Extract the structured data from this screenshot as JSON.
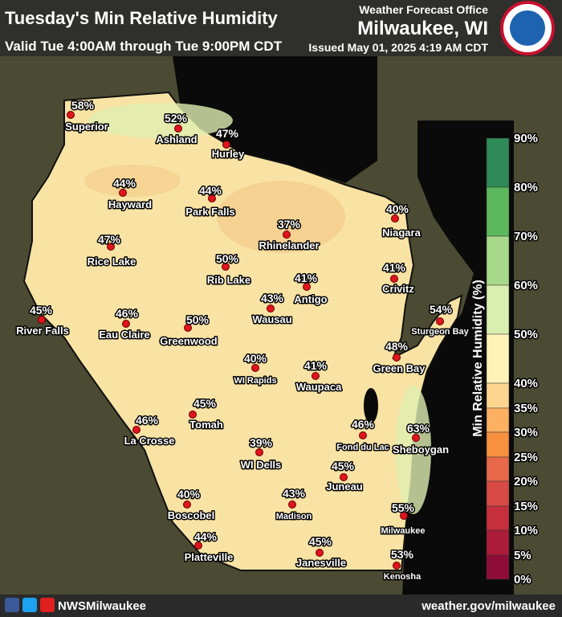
{
  "header": {
    "title": "Tuesday's Min Relative Humidity",
    "valid": "Valid Tue 4:00AM through Tue 9:00PM CDT",
    "office": "Weather Forecast Office",
    "location": "Milwaukee, WI",
    "issued": "Issued May 01, 2025 4:19 AM CDT"
  },
  "cities": [
    {
      "name": "Superior",
      "value": "58%"
    },
    {
      "name": "Ashland",
      "value": "52%"
    },
    {
      "name": "Hurley",
      "value": "47%"
    },
    {
      "name": "Hayward",
      "value": "44%"
    },
    {
      "name": "Park Falls",
      "value": "44%"
    },
    {
      "name": "Rhinelander",
      "value": "37%"
    },
    {
      "name": "Niagara",
      "value": "40%"
    },
    {
      "name": "Rice Lake",
      "value": "47%"
    },
    {
      "name": "Rib Lake",
      "value": "50%"
    },
    {
      "name": "Antigo",
      "value": "41%"
    },
    {
      "name": "Crivitz",
      "value": "41%"
    },
    {
      "name": "Sturgeon Bay",
      "value": "54%"
    },
    {
      "name": "River Falls",
      "value": "45%"
    },
    {
      "name": "Eau Claire",
      "value": "46%"
    },
    {
      "name": "Wausau",
      "value": "43%"
    },
    {
      "name": "Greenwood",
      "value": "50%"
    },
    {
      "name": "Green Bay",
      "value": "48%"
    },
    {
      "name": "WI Rapids",
      "value": "40%"
    },
    {
      "name": "Waupaca",
      "value": "41%"
    },
    {
      "name": "Tomah",
      "value": "45%"
    },
    {
      "name": "La Crosse",
      "value": "46%"
    },
    {
      "name": "Fond du Lac",
      "value": "46%"
    },
    {
      "name": "Sheboygan",
      "value": "63%"
    },
    {
      "name": "WI Dells",
      "value": "39%"
    },
    {
      "name": "Juneau",
      "value": "45%"
    },
    {
      "name": "Boscobel",
      "value": "40%"
    },
    {
      "name": "Madison",
      "value": "43%"
    },
    {
      "name": "Milwaukee",
      "value": "55%"
    },
    {
      "name": "Platteville",
      "value": "44%"
    },
    {
      "name": "Janesville",
      "value": "45%"
    },
    {
      "name": "Kenosha",
      "value": "53%"
    }
  ],
  "legend": {
    "title": "Min Relative Humidity (%)",
    "ticks": [
      "90%",
      "80%",
      "70%",
      "60%",
      "50%",
      "40%",
      "35%",
      "30%",
      "25%",
      "20%",
      "15%",
      "10%",
      "5%",
      "0%"
    ],
    "colors": [
      "#2e8b57",
      "#5cb85c",
      "#a8d98a",
      "#d9efb0",
      "#fff3b8",
      "#fdd58e",
      "#fcb062",
      "#f7903f",
      "#e8684a",
      "#d84a44",
      "#c62f3c",
      "#ad1b3a",
      "#8e0c38"
    ]
  },
  "footer": {
    "handle": "NWSMilwaukee",
    "url": "weather.gov/milwaukee"
  }
}
